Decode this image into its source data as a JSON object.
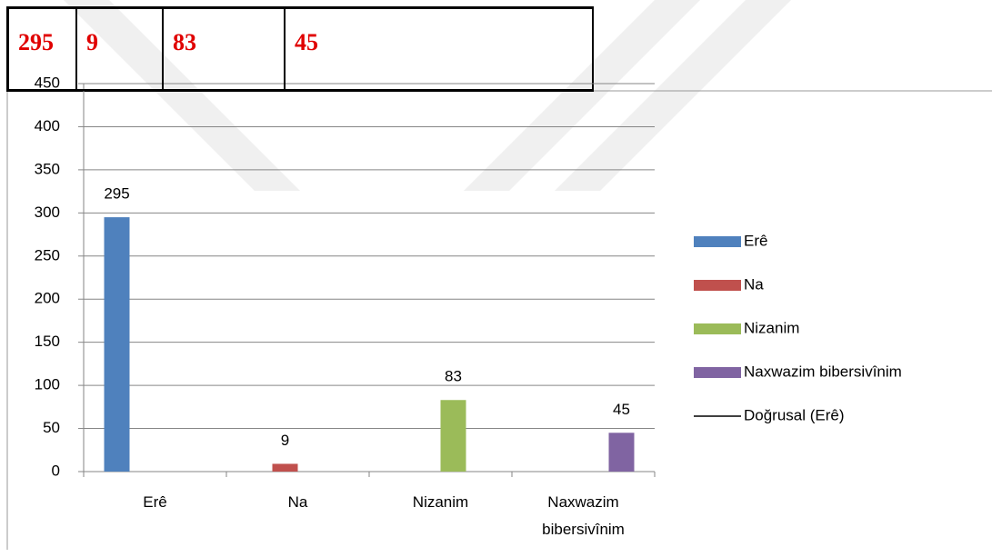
{
  "table": {
    "rows": [
      [
        295,
        9,
        83,
        45
      ]
    ]
  },
  "chart_data": {
    "type": "bar",
    "categories": [
      "Erê",
      "Na",
      "Nizanim",
      "Naxwazim bibersivînim"
    ],
    "series": [
      {
        "name": "Erê",
        "color": "#4f81bd",
        "values": [
          295,
          null,
          null,
          null
        ]
      },
      {
        "name": "Na",
        "color": "#c0504d",
        "values": [
          null,
          9,
          null,
          null
        ]
      },
      {
        "name": "Nizanim",
        "color": "#9bbb59",
        "values": [
          null,
          null,
          83,
          null
        ]
      },
      {
        "name": "Naxwazim bibersivînim",
        "color": "#8064a2",
        "values": [
          null,
          null,
          null,
          45
        ]
      }
    ],
    "trendline": {
      "name": "Doğrusal (Erê)",
      "color": "#000000"
    },
    "ylim": [
      0,
      450
    ],
    "yticks": [
      0,
      50,
      100,
      150,
      200,
      250,
      300,
      350,
      400,
      450
    ],
    "grid": true,
    "legend": "right",
    "data_labels": true
  }
}
